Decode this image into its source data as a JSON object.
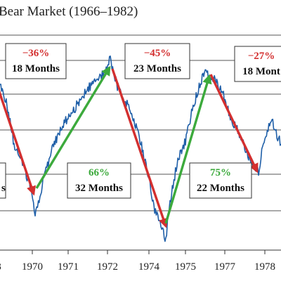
{
  "chart_data": {
    "type": "line",
    "title": "Bear Market (1966–1982)",
    "x_tick_labels": [
      "8",
      "1970",
      "1971",
      "1972",
      "1974",
      "1975",
      "1977",
      "1978"
    ],
    "grid": "horizontal",
    "colors": {
      "series": "#1f5fa8",
      "decline": "#d32f2f",
      "advance": "#3caa3c",
      "grid": "#555555"
    },
    "annotations": [
      {
        "type": "decline",
        "pct": "−36%",
        "duration": "18 Months"
      },
      {
        "type": "advance",
        "pct": "66%",
        "duration": "32 Months"
      },
      {
        "type": "decline",
        "pct": "−45%",
        "duration": "23 Months"
      },
      {
        "type": "advance",
        "pct": "75%",
        "duration": "22 Months"
      },
      {
        "type": "decline",
        "pct": "−27%",
        "duration": "18 Mont"
      }
    ],
    "partial_box": {
      "duration": "s"
    }
  }
}
